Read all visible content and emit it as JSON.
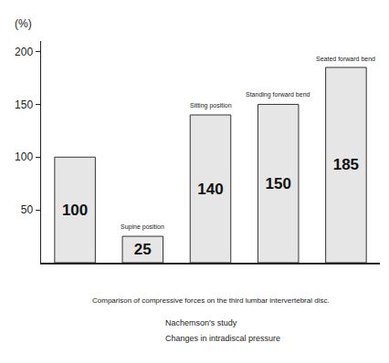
{
  "chart_data": {
    "type": "bar",
    "y_label": "(%)",
    "categories": [
      null,
      "Supine position",
      "Sitting position",
      "Standing forward bend",
      "Seated forward bend"
    ],
    "values": [
      100,
      25,
      140,
      150,
      185
    ],
    "color": "#e6e6e6",
    "ylim": [
      0,
      210
    ],
    "yticks": [
      50,
      100,
      150,
      200
    ],
    "grid": false,
    "data_labels": true,
    "tick_labels": "y",
    "caption": "Comparison of compressive forces on the third lumbar intervertebral disc.",
    "notes": [
      "Nachemson's study",
      "Changes in intradiscal pressure"
    ]
  }
}
